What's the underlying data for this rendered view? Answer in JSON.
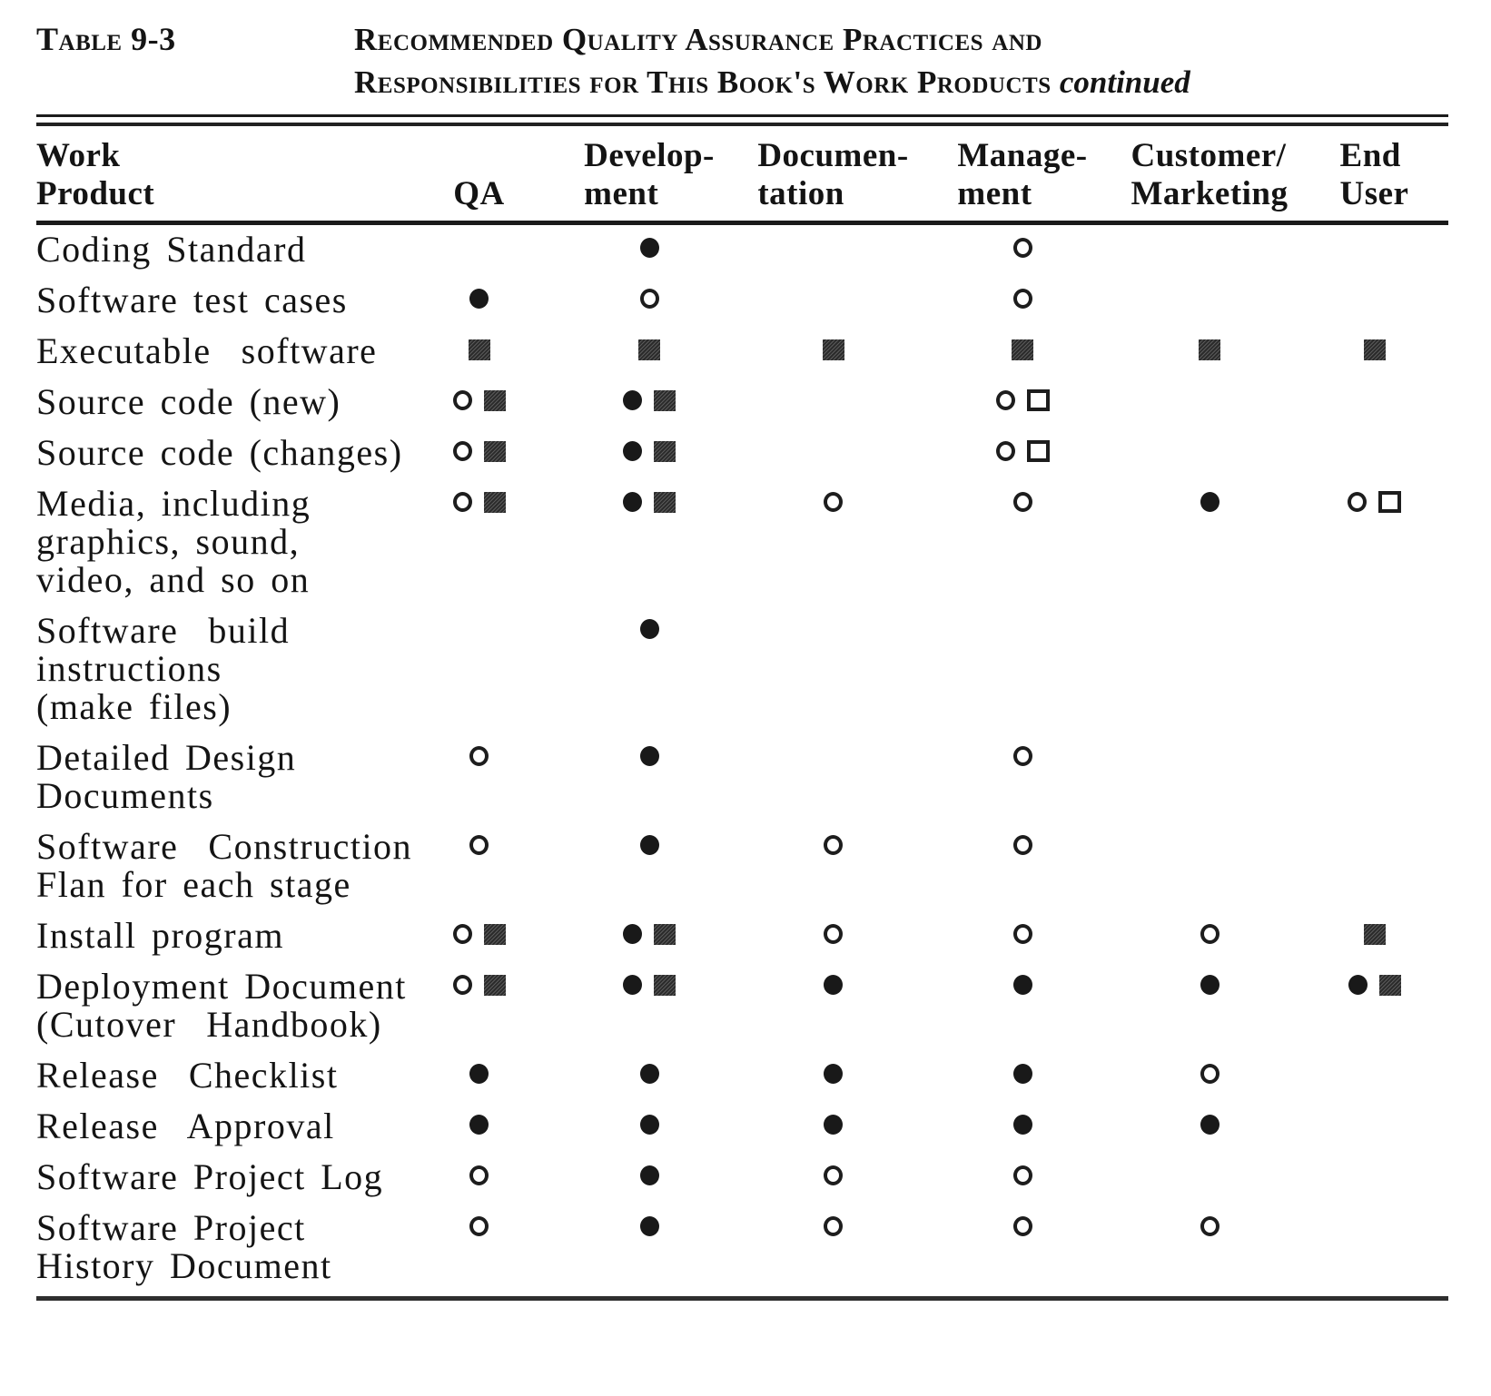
{
  "title": {
    "table_label": "Table 9-3",
    "heading_line1": "Recommended Quality Assurance Practices and",
    "heading_line2": "Responsibilities for This Book's Work Products",
    "continued_label": "continued"
  },
  "table": {
    "columns": [
      {
        "key": "work_product",
        "label": "Work\nProduct"
      },
      {
        "key": "qa",
        "label": "QA"
      },
      {
        "key": "development",
        "label": "Develop-\nment"
      },
      {
        "key": "documentation",
        "label": "Documen-\ntation"
      },
      {
        "key": "management",
        "label": "Manage-\nment"
      },
      {
        "key": "customer_marketing",
        "label": "Customer/\nMarketing"
      },
      {
        "key": "end_user",
        "label": "End\nUser"
      }
    ],
    "symbols": {
      "filled-circle": "●",
      "open-circle": "○",
      "filled-square": "■",
      "open-square": "□"
    },
    "rows": [
      {
        "work_product": "Coding Standard",
        "qa": [],
        "development": [
          "filled-circle"
        ],
        "documentation": [],
        "management": [
          "open-circle"
        ],
        "customer_marketing": [],
        "end_user": []
      },
      {
        "work_product": "Software test cases",
        "qa": [
          "filled-circle"
        ],
        "development": [
          "open-circle"
        ],
        "documentation": [],
        "management": [
          "open-circle"
        ],
        "customer_marketing": [],
        "end_user": []
      },
      {
        "work_product": "Executable  software",
        "qa": [
          "filled-square"
        ],
        "development": [
          "filled-square"
        ],
        "documentation": [
          "filled-square"
        ],
        "management": [
          "filled-square"
        ],
        "customer_marketing": [
          "filled-square"
        ],
        "end_user": [
          "filled-square"
        ]
      },
      {
        "work_product": "Source code (new)",
        "qa": [
          "open-circle",
          "filled-square"
        ],
        "development": [
          "filled-circle",
          "filled-square"
        ],
        "documentation": [],
        "management": [
          "open-circle",
          "open-square"
        ],
        "customer_marketing": [],
        "end_user": []
      },
      {
        "work_product": "Source code (changes)",
        "qa": [
          "open-circle",
          "filled-square"
        ],
        "development": [
          "filled-circle",
          "filled-square"
        ],
        "documentation": [],
        "management": [
          "open-circle",
          "open-square"
        ],
        "customer_marketing": [],
        "end_user": []
      },
      {
        "work_product": "Media, including\ngraphics, sound,\nvideo, and so on",
        "qa": [
          "open-circle",
          "filled-square"
        ],
        "development": [
          "filled-circle",
          "filled-square"
        ],
        "documentation": [
          "open-circle"
        ],
        "management": [
          "open-circle"
        ],
        "customer_marketing": [
          "filled-circle"
        ],
        "end_user": [
          "open-circle",
          "open-square"
        ]
      },
      {
        "work_product": "Software  build\ninstructions\n(make files)",
        "qa": [],
        "development": [
          "filled-circle"
        ],
        "documentation": [],
        "management": [],
        "customer_marketing": [],
        "end_user": []
      },
      {
        "work_product": "Detailed Design\nDocuments",
        "qa": [
          "open-circle"
        ],
        "development": [
          "filled-circle"
        ],
        "documentation": [],
        "management": [
          "open-circle"
        ],
        "customer_marketing": [],
        "end_user": []
      },
      {
        "work_product": "Software  Construction\nFlan for each stage",
        "qa": [
          "open-circle"
        ],
        "development": [
          "filled-circle"
        ],
        "documentation": [
          "open-circle"
        ],
        "management": [
          "open-circle"
        ],
        "customer_marketing": [],
        "end_user": []
      },
      {
        "work_product": "Install program",
        "qa": [
          "open-circle",
          "filled-square"
        ],
        "development": [
          "filled-circle",
          "filled-square"
        ],
        "documentation": [
          "open-circle"
        ],
        "management": [
          "open-circle"
        ],
        "customer_marketing": [
          "open-circle"
        ],
        "end_user": [
          "filled-square"
        ]
      },
      {
        "work_product": "Deployment Document\n(Cutover  Handbook)",
        "qa": [
          "open-circle",
          "filled-square"
        ],
        "development": [
          "filled-circle",
          "filled-square"
        ],
        "documentation": [
          "filled-circle"
        ],
        "management": [
          "filled-circle"
        ],
        "customer_marketing": [
          "filled-circle"
        ],
        "end_user": [
          "filled-circle",
          "filled-square"
        ]
      },
      {
        "work_product": "Release  Checklist",
        "qa": [
          "filled-circle"
        ],
        "development": [
          "filled-circle"
        ],
        "documentation": [
          "filled-circle"
        ],
        "management": [
          "filled-circle"
        ],
        "customer_marketing": [
          "open-circle"
        ],
        "end_user": []
      },
      {
        "work_product": "Release  Approval",
        "qa": [
          "filled-circle"
        ],
        "development": [
          "filled-circle"
        ],
        "documentation": [
          "filled-circle"
        ],
        "management": [
          "filled-circle"
        ],
        "customer_marketing": [
          "filled-circle"
        ],
        "end_user": []
      },
      {
        "work_product": "Software Project Log",
        "qa": [
          "open-circle"
        ],
        "development": [
          "filled-circle"
        ],
        "documentation": [
          "open-circle"
        ],
        "management": [
          "open-circle"
        ],
        "customer_marketing": [],
        "end_user": []
      },
      {
        "work_product": "Software Project\nHistory Document",
        "qa": [
          "open-circle"
        ],
        "development": [
          "filled-circle"
        ],
        "documentation": [
          "open-circle"
        ],
        "management": [
          "open-circle"
        ],
        "customer_marketing": [
          "open-circle"
        ],
        "end_user": []
      }
    ]
  }
}
